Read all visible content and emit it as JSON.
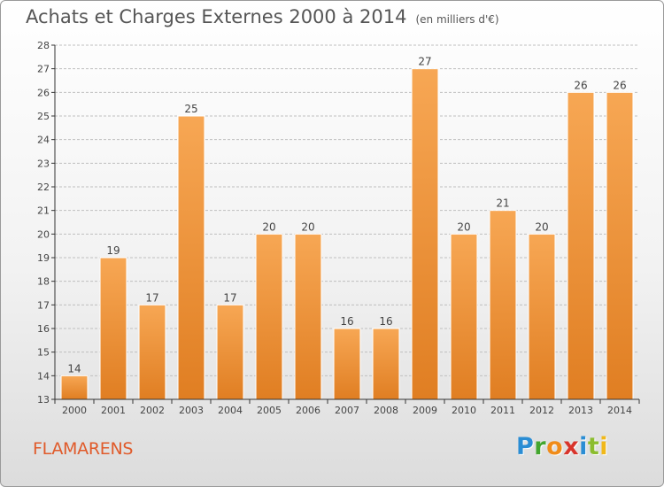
{
  "header": {
    "title": "Achats et Charges Externes 2000 à 2014",
    "subtitle": "(en milliers d'€)"
  },
  "footer": {
    "city": "FLAMARENS",
    "logo_letters": [
      {
        "ch": "P",
        "color": "#2a8dd4"
      },
      {
        "ch": "r",
        "color": "#43a62f"
      },
      {
        "ch": "o",
        "color": "#f08c1a"
      },
      {
        "ch": "x",
        "color": "#d8342b"
      },
      {
        "ch": "i",
        "color": "#2a8dd4"
      },
      {
        "ch": "t",
        "color": "#8bbd2f"
      },
      {
        "ch": "i",
        "color": "#f0b81a"
      }
    ]
  },
  "colors": {
    "bar_top": "#f7a754",
    "bar_bottom": "#e07e22",
    "grid": "#bfbfbf",
    "axis": "#333333",
    "text": "#444444"
  },
  "chart_data": {
    "type": "bar",
    "title": "Achats et Charges Externes 2000 à 2014",
    "subtitle": "(en milliers d'€)",
    "categories": [
      "2000",
      "2001",
      "2002",
      "2003",
      "2004",
      "2005",
      "2006",
      "2007",
      "2008",
      "2009",
      "2010",
      "2011",
      "2012",
      "2013",
      "2014"
    ],
    "values": [
      14,
      19,
      17,
      25,
      17,
      20,
      20,
      16,
      16,
      27,
      20,
      21,
      20,
      26,
      26
    ],
    "ylim": [
      13,
      28
    ],
    "yticks": [
      13,
      14,
      15,
      16,
      17,
      18,
      19,
      20,
      21,
      22,
      23,
      24,
      25,
      26,
      27,
      28
    ],
    "grid": true,
    "data_labels": true,
    "xlabel": "",
    "ylabel": ""
  }
}
